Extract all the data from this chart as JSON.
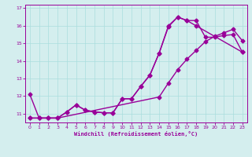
{
  "title": "",
  "xlabel": "Windchill (Refroidissement éolien,°C)",
  "ylabel": "",
  "background_color": "#d4eeee",
  "grid_color": "#aadddd",
  "line_color": "#990099",
  "xlim": [
    -0.5,
    23.5
  ],
  "ylim": [
    10.5,
    17.2
  ],
  "xticks": [
    0,
    1,
    2,
    3,
    4,
    5,
    6,
    7,
    8,
    9,
    10,
    11,
    12,
    13,
    14,
    15,
    16,
    17,
    18,
    19,
    20,
    21,
    22,
    23
  ],
  "yticks": [
    11,
    12,
    13,
    14,
    15,
    16,
    17
  ],
  "line1_x": [
    0,
    1,
    2,
    3,
    4,
    5,
    6,
    7,
    8,
    9,
    10,
    11,
    12,
    13,
    14,
    15,
    16,
    17,
    18,
    19,
    20,
    21,
    22,
    23
  ],
  "line1_y": [
    12.1,
    10.75,
    10.75,
    10.75,
    11.1,
    11.5,
    11.2,
    11.1,
    11.05,
    11.05,
    11.85,
    11.85,
    12.55,
    13.2,
    14.45,
    15.95,
    16.5,
    16.3,
    16.3,
    15.35,
    15.35,
    15.45,
    15.5,
    14.5
  ],
  "line2_x": [
    0,
    1,
    2,
    3,
    4,
    5,
    6,
    7,
    8,
    9,
    10,
    11,
    12,
    13,
    14,
    15,
    16,
    17,
    18,
    23
  ],
  "line2_y": [
    10.75,
    10.75,
    10.75,
    10.75,
    11.1,
    11.5,
    11.2,
    11.1,
    11.05,
    11.05,
    11.85,
    11.85,
    12.55,
    13.2,
    14.45,
    16.0,
    16.5,
    16.3,
    16.0,
    14.5
  ],
  "line3_x": [
    0,
    1,
    2,
    3,
    14,
    15,
    16,
    17,
    18,
    19,
    20,
    21,
    22,
    23
  ],
  "line3_y": [
    10.75,
    10.75,
    10.75,
    10.75,
    11.95,
    12.75,
    13.5,
    14.1,
    14.6,
    15.1,
    15.4,
    15.6,
    15.8,
    15.15
  ],
  "marker": "D",
  "markersize": 2.5,
  "linewidth": 1.0
}
